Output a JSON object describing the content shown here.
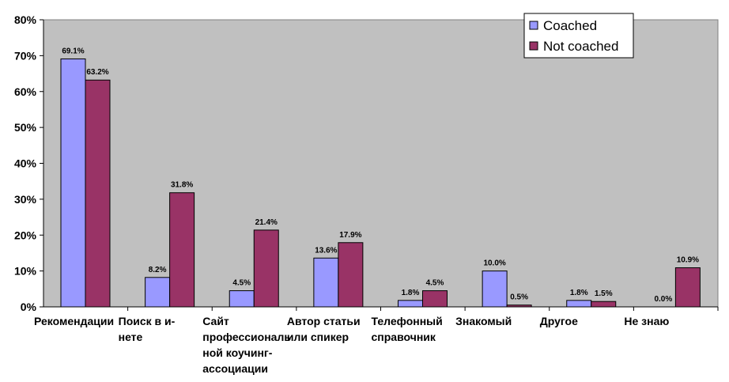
{
  "chart_data": {
    "type": "bar",
    "categories": [
      "Рекомендации",
      "Поиск в и-нете",
      "Сайт профессиональной коучинг-ассоциации",
      "Автор статьи или спикер",
      "Телефонный справочник",
      "Знакомый",
      "Другое",
      "Не знаю"
    ],
    "category_lines": [
      [
        "Рекомендации"
      ],
      [
        "Поиск в и-",
        "нете"
      ],
      [
        "Сайт",
        "профессиональ",
        "ной коучинг-",
        "ассоциации"
      ],
      [
        "Автор статьи",
        "или спикер"
      ],
      [
        "Телефонный",
        "справочник"
      ],
      [
        "Знакомый"
      ],
      [
        "Другое"
      ],
      [
        "Не знаю"
      ]
    ],
    "series": [
      {
        "name": "Coached",
        "color": "#9999ff",
        "values": [
          69.1,
          8.2,
          4.5,
          13.6,
          1.8,
          10.0,
          1.8,
          0.0
        ],
        "labels": [
          "69.1%",
          "8.2%",
          "4.5%",
          "13.6%",
          "1.8%",
          "10.0%",
          "1.8%",
          "0.0%"
        ]
      },
      {
        "name": "Not coached",
        "color": "#993366",
        "values": [
          63.2,
          31.8,
          21.4,
          17.9,
          4.5,
          0.5,
          1.5,
          10.9
        ],
        "labels": [
          "63.2%",
          "31.8%",
          "21.4%",
          "17.9%",
          "4.5%",
          "0.5%",
          "1.5%",
          "10.9%"
        ]
      }
    ],
    "y_ticks": [
      "0%",
      "10%",
      "20%",
      "30%",
      "40%",
      "50%",
      "60%",
      "70%",
      "80%"
    ],
    "ylim": [
      0,
      80
    ],
    "plot_background": "#c0c0c0",
    "grid": false,
    "legend_position": "top-right"
  }
}
